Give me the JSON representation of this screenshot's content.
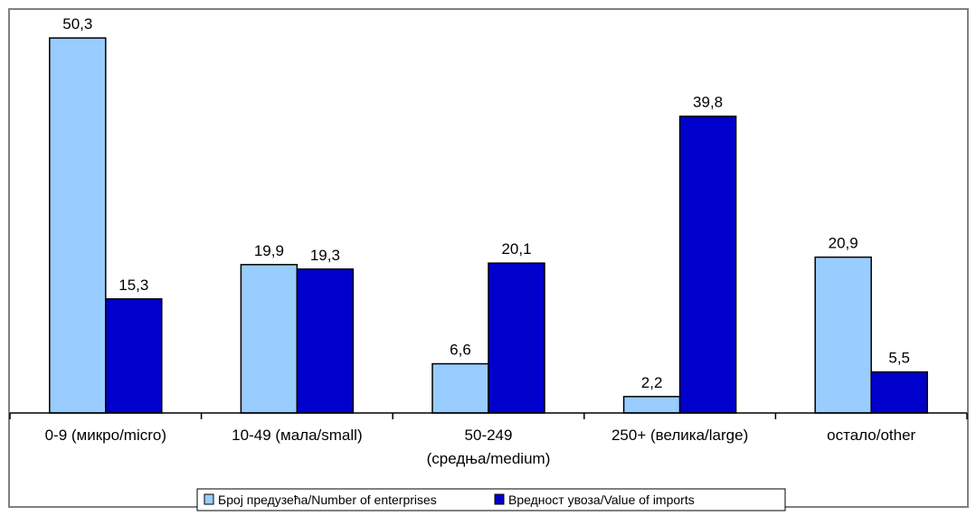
{
  "chart_data": {
    "type": "bar",
    "categories": [
      [
        "0-9 (микро/micro)"
      ],
      [
        "10-49 (мала/small)"
      ],
      [
        "50-249",
        "(средња/medium)"
      ],
      [
        "250+ (велика/large)"
      ],
      [
        "остало/other"
      ]
    ],
    "series": [
      {
        "name": "Број предузећа/Number of enterprises",
        "color": "#99ccff",
        "values": [
          50.3,
          19.9,
          6.6,
          2.2,
          20.9
        ],
        "labels": [
          "50,3",
          "19,9",
          "6,6",
          "2,2",
          "20,9"
        ]
      },
      {
        "name": "Вредност увоза/Value of imports",
        "color": "#0000cc",
        "values": [
          15.3,
          19.3,
          20.1,
          39.8,
          5.5
        ],
        "labels": [
          "15,3",
          "19,3",
          "20,1",
          "39,8",
          "5,5"
        ]
      }
    ],
    "ylim": [
      0,
      52
    ],
    "grid": false,
    "legend_position": "bottom"
  }
}
